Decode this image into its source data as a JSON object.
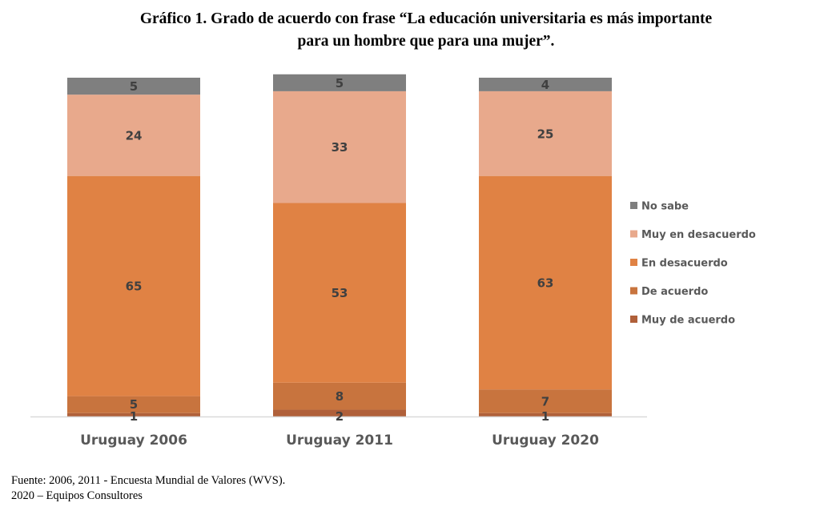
{
  "title_line1": "Gráfico 1. Grado de acuerdo con frase “La educación universitaria es más importante",
  "title_line2": "para un hombre que para una mujer”.",
  "source_line1": "Fuente: 2006, 2011 - Encuesta Mundial de Valores (WVS).",
  "source_line2": "2020 – Equipos Consultores",
  "chart_data": {
    "type": "bar",
    "stacked": true,
    "title": "Gráfico 1. Grado de acuerdo con frase “La educación universitaria es más importante para un hombre que para una mujer”.",
    "xlabel": "",
    "ylabel": "",
    "ylim": [
      0,
      100
    ],
    "grid": false,
    "legend_position": "right",
    "categories": [
      "Uruguay 2006",
      "Uruguay 2011",
      "Uruguay 2020"
    ],
    "series": [
      {
        "name": "Muy de acuerdo",
        "color": "#B0603A",
        "values": [
          1,
          2,
          1
        ]
      },
      {
        "name": "De acuerdo",
        "color": "#C8743E",
        "values": [
          5,
          8,
          7
        ]
      },
      {
        "name": "En desacuerdo",
        "color": "#E08244",
        "values": [
          65,
          53,
          63
        ]
      },
      {
        "name": "Muy en desacuerdo",
        "color": "#E8A98C",
        "values": [
          24,
          33,
          25
        ]
      },
      {
        "name": "No sabe",
        "color": "#7F7F7F",
        "values": [
          5,
          5,
          4
        ]
      }
    ],
    "legend_order": [
      "No sabe",
      "Muy en desacuerdo",
      "En desacuerdo",
      "De acuerdo",
      "Muy de acuerdo"
    ]
  }
}
